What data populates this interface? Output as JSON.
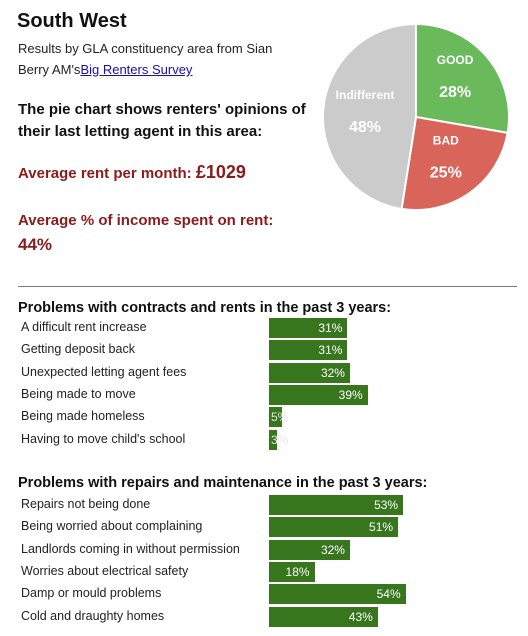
{
  "header": {
    "title": "South West",
    "subtitle_prefix": "Results by GLA constituency area from Sian Berry AM's",
    "survey_link": "Big Renters Survey"
  },
  "pie_heading": "The pie chart shows renters' opinions of their last letting agent in this area:",
  "rent": {
    "label": "Average rent per month:",
    "value": "£1029"
  },
  "income": {
    "label": "Average % of income spent on rent:",
    "value": "44%"
  },
  "colors": {
    "good": "#6ab95b",
    "bad": "#d9655a",
    "indifferent": "#cbcbcb",
    "bar": "#37761d",
    "accent_text": "#8b1a1a"
  },
  "chart_data": [
    {
      "type": "pie",
      "title": "",
      "slices": [
        {
          "label": "GOOD",
          "value": 28,
          "display": "28%",
          "color": "#6ab95b"
        },
        {
          "label": "BAD",
          "value": 25,
          "display": "25%",
          "color": "#d9655a"
        },
        {
          "label": "Indifferent",
          "value": 48,
          "display": "48%",
          "color": "#cbcbcb"
        }
      ]
    },
    {
      "type": "bar",
      "title": "Problems with contracts and rents in the past 3 years:",
      "categories": [
        "A difficult rent increase",
        "Getting deposit back",
        "Unexpected letting agent fees",
        "Being made to move",
        "Being made homeless",
        "Having to move child's school"
      ],
      "values": [
        31,
        31,
        32,
        39,
        5,
        3
      ],
      "labels": [
        "31%",
        "31%",
        "32%",
        "39%",
        "5%",
        "3%"
      ]
    },
    {
      "type": "bar",
      "title": "Problems with repairs and maintenance in the past 3 years:",
      "categories": [
        "Repairs not being done",
        "Being worried about complaining",
        "Landlords coming in without permission",
        "Worries about electrical safety",
        "Damp or mould problems",
        "Cold and draughty homes"
      ],
      "values": [
        53,
        51,
        32,
        18,
        54,
        43
      ],
      "labels": [
        "53%",
        "51%",
        "32%",
        "18%",
        "54%",
        "43%"
      ]
    }
  ]
}
